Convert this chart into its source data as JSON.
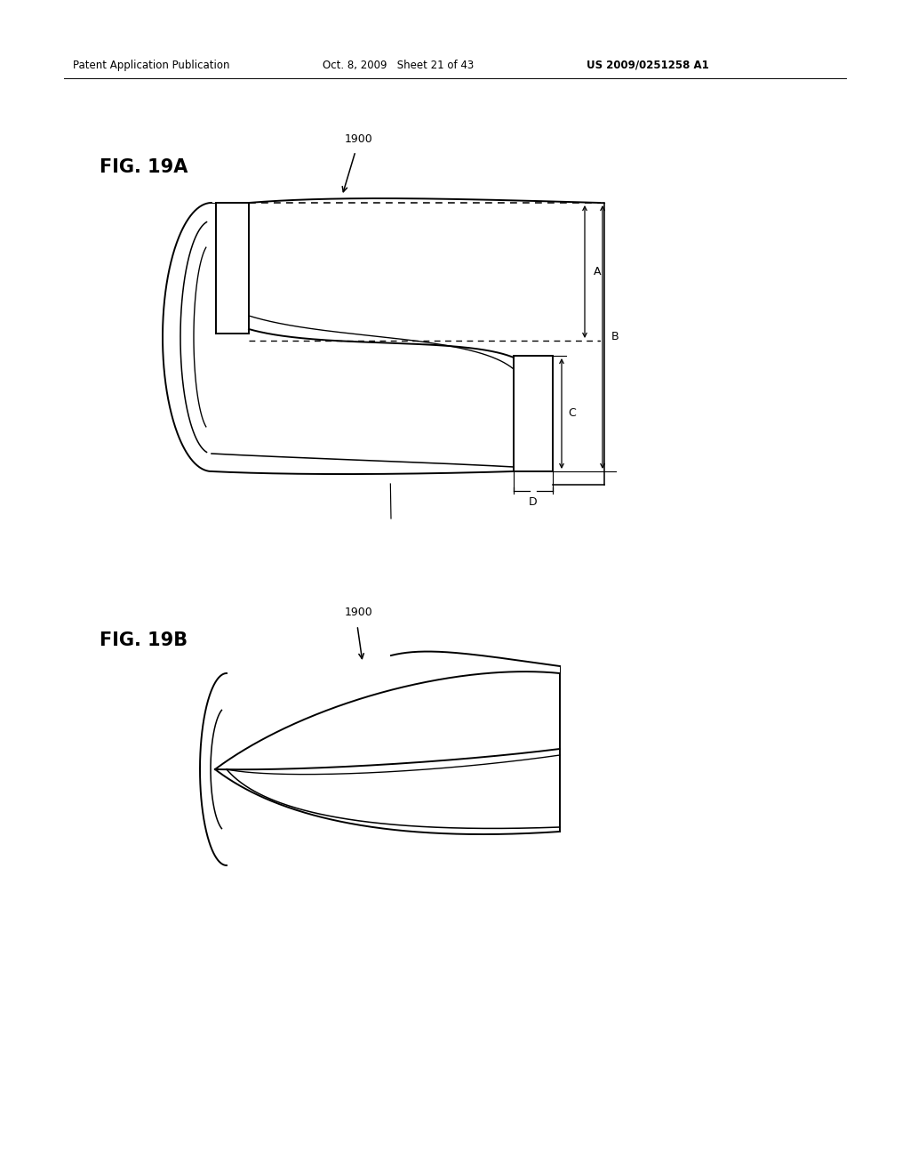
{
  "background_color": "#ffffff",
  "header_left": "Patent Application Publication",
  "header_mid": "Oct. 8, 2009   Sheet 21 of 43",
  "header_right": "US 2009/0251258 A1",
  "fig19a_label": "FIG. 19A",
  "fig19b_label": "FIG. 19B",
  "ref_1900": "1900",
  "dim_A": "A",
  "dim_B": "B",
  "dim_C": "C",
  "dim_D": "D"
}
